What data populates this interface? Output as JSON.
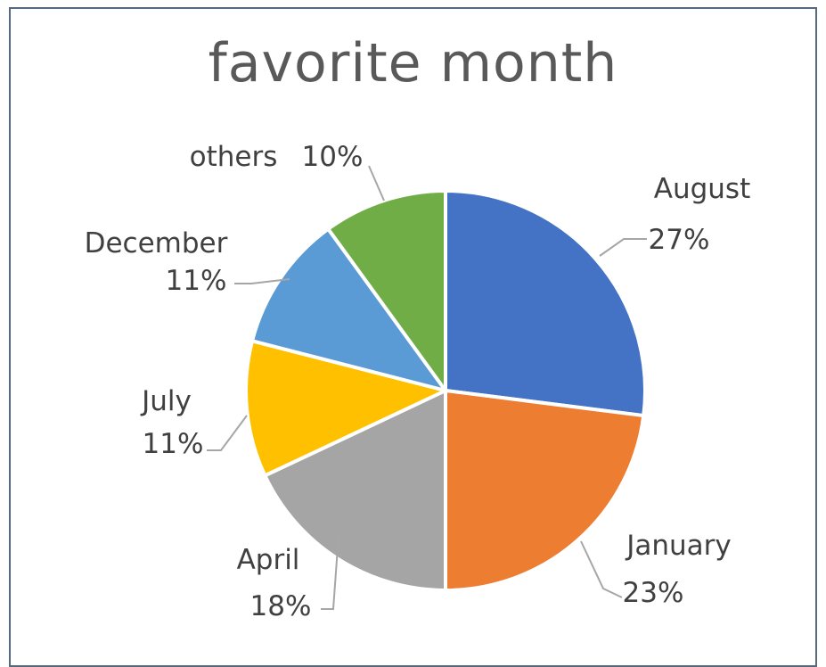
{
  "chart_data": {
    "type": "pie",
    "title": "favorite month",
    "slices": [
      {
        "label": "August",
        "percent_label": "27%",
        "value": 27,
        "color": "#4472c4"
      },
      {
        "label": "January",
        "percent_label": "23%",
        "value": 23,
        "color": "#ed7d31"
      },
      {
        "label": "April",
        "percent_label": "18%",
        "value": 18,
        "color": "#a5a5a5"
      },
      {
        "label": "July",
        "percent_label": "11%",
        "value": 11,
        "color": "#ffc000"
      },
      {
        "label": "December",
        "percent_label": "11%",
        "value": 11,
        "color": "#5b9bd5"
      },
      {
        "label": "others",
        "percent_label": "10%",
        "value": 10,
        "color": "#70ad47"
      }
    ],
    "legend": "none",
    "start_angle": "12 o'clock",
    "direction": "clockwise"
  }
}
